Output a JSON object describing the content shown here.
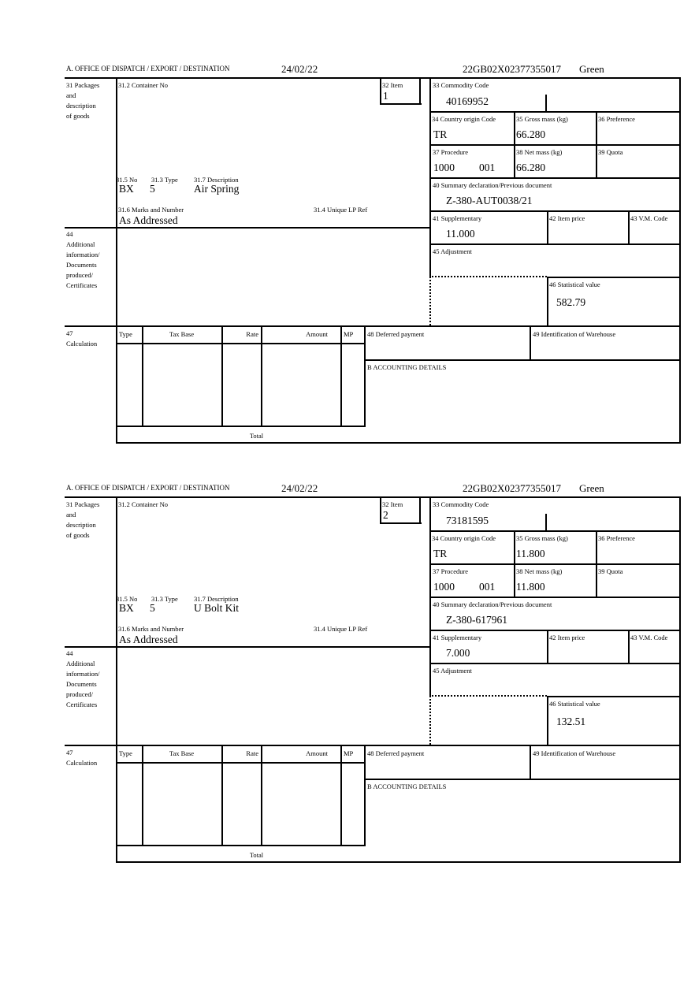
{
  "labels": {
    "office": "A. OFFICE OF DISPATCH / EXPORT / DESTINATION",
    "box31": [
      "31 Packages",
      "and",
      "description",
      "of goods"
    ],
    "container_no": "31.2 Container No",
    "item": "32 Item",
    "no": "31.5 No",
    "type": "31.3 Type",
    "description": "31.7 Description",
    "marks": "31.6 Marks and Number",
    "unique_lp": "31.4 Unique LP Ref",
    "commodity": "33 Commodity Code",
    "country": "34 Country origin Code",
    "gross": "35 Gross mass (kg)",
    "preference": "36 Preference",
    "procedure": "37 Procedure",
    "net": "38 Net mass (kg)",
    "quota": "39 Quota",
    "summary": "40 Summary declaration/Previous document",
    "supplementary": "41 Supplementary",
    "item_price": "42 Item price",
    "vm_code": "43 V.M. Code",
    "box44": [
      "44",
      "Additional",
      "information/",
      "Documents",
      "produced/",
      "Certificates"
    ],
    "adjustment": "45 Adjustment",
    "statistical": "46 Statistical value",
    "box47": [
      "47",
      "Calculation"
    ],
    "calc_cols": [
      "Type",
      "Tax Base",
      "Rate",
      "Amount",
      "MP"
    ],
    "deferred": "48 Deferred payment",
    "warehouse": "49 Identification of Warehouse",
    "accounting": "B ACCOUNTING DETAILS",
    "total": "Total"
  },
  "forms": [
    {
      "date": "24/02/22",
      "reference": "22GB02X02377355017",
      "route": "Green",
      "item": "1",
      "pkg_no": "BX",
      "pkg_type": "5",
      "description": "Air Spring",
      "marks": "As Addressed",
      "commodity": "40169952",
      "country": "TR",
      "gross": "66.280",
      "procedure": "1000",
      "procedure_add": "001",
      "net": "66.280",
      "summary": "Z-380-AUT0038/21",
      "supplementary": "11.000",
      "statistical": "582.79"
    },
    {
      "date": "24/02/22",
      "reference": "22GB02X02377355017",
      "route": "Green",
      "item": "2",
      "pkg_no": "BX",
      "pkg_type": "5",
      "description": "U Bolt Kit",
      "marks": "As Addressed",
      "commodity": "73181595",
      "country": "TR",
      "gross": "11.800",
      "procedure": "1000",
      "procedure_add": "001",
      "net": "11.800",
      "summary": "Z-380-617961",
      "supplementary": "7.000",
      "statistical": "132.51"
    }
  ]
}
